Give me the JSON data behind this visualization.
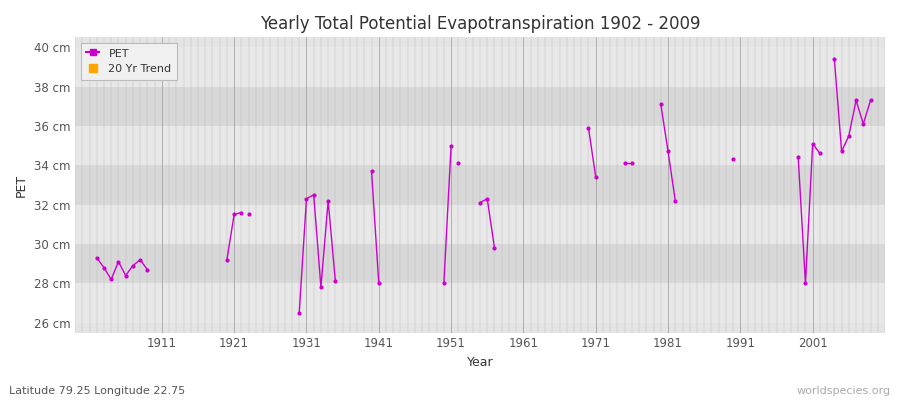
{
  "title": "Yearly Total Potential Evapotranspiration 1902 - 2009",
  "xlabel": "Year",
  "ylabel": "PET",
  "subtitle": "Latitude 79.25 Longitude 22.75",
  "watermark": "worldspecies.org",
  "ylim": [
    25.5,
    40.5
  ],
  "ytick_labels": [
    "26 cm",
    "28 cm",
    "30 cm",
    "32 cm",
    "34 cm",
    "36 cm",
    "38 cm",
    "40 cm"
  ],
  "ytick_values": [
    26,
    28,
    30,
    32,
    34,
    36,
    38,
    40
  ],
  "xtick_values": [
    1911,
    1921,
    1931,
    1941,
    1951,
    1961,
    1971,
    1981,
    1991,
    2001
  ],
  "pet_color": "#cc00cc",
  "trend_color": "#FFA500",
  "fig_bg_color": "#ffffff",
  "plot_bg_color": "#e0e0e0",
  "band_color_light": "#e8e8e8",
  "band_color_dark": "#d8d8d8",
  "pet_segments": [
    {
      "years": [
        1902,
        1903,
        1904,
        1905,
        1906,
        1907,
        1908,
        1909
      ],
      "values": [
        29.3,
        28.8,
        28.2,
        29.1,
        28.4,
        28.9,
        29.2,
        28.7
      ]
    },
    {
      "years": [
        1920,
        1921,
        1922
      ],
      "values": [
        29.2,
        31.5,
        31.6
      ]
    },
    {
      "years": [
        1923
      ],
      "values": [
        31.5
      ]
    },
    {
      "years": [
        1930,
        1931,
        1932,
        1933,
        1934,
        1935
      ],
      "values": [
        26.5,
        32.3,
        32.5,
        27.8,
        32.2,
        28.1
      ]
    },
    {
      "years": [
        1940,
        1941
      ],
      "values": [
        33.7,
        28.0
      ]
    },
    {
      "years": [
        1950,
        1951
      ],
      "values": [
        28.0,
        35.0
      ]
    },
    {
      "years": [
        1952
      ],
      "values": [
        34.1
      ]
    },
    {
      "years": [
        1955,
        1956,
        1957
      ],
      "values": [
        32.1,
        32.3,
        29.8
      ]
    },
    {
      "years": [
        1970,
        1971
      ],
      "values": [
        35.9,
        33.4
      ]
    },
    {
      "years": [
        1975,
        1976
      ],
      "values": [
        34.1,
        34.1
      ]
    },
    {
      "years": [
        1980,
        1981,
        1982
      ],
      "values": [
        37.1,
        34.7,
        32.2
      ]
    },
    {
      "years": [
        1990
      ],
      "values": [
        34.3
      ]
    },
    {
      "years": [
        1999,
        2000,
        2001,
        2002
      ],
      "values": [
        34.4,
        28.0,
        35.1,
        34.6
      ]
    },
    {
      "years": [
        2004,
        2005,
        2006,
        2007,
        2008,
        2009
      ],
      "values": [
        39.4,
        34.7,
        35.5,
        37.3,
        36.1,
        37.3
      ]
    }
  ],
  "legend_pet_label": "PET",
  "legend_trend_label": "20 Yr Trend"
}
